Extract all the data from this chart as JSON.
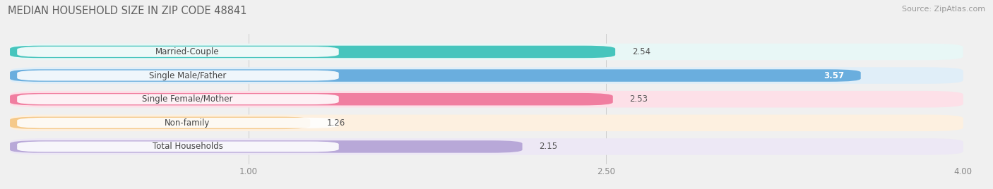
{
  "title": "MEDIAN HOUSEHOLD SIZE IN ZIP CODE 48841",
  "source": "Source: ZipAtlas.com",
  "categories": [
    "Married-Couple",
    "Single Male/Father",
    "Single Female/Mother",
    "Non-family",
    "Total Households"
  ],
  "values": [
    2.54,
    3.57,
    2.53,
    1.26,
    2.15
  ],
  "bar_colors": [
    "#46C5BD",
    "#6AAEDE",
    "#F07EA0",
    "#F5C98A",
    "#B8A8D8"
  ],
  "bar_bg_colors": [
    "#E8F7F6",
    "#E0EEF8",
    "#FDE0E8",
    "#FDF0E0",
    "#EDE8F5"
  ],
  "value_colors": [
    "#555555",
    "#ffffff",
    "#555555",
    "#555555",
    "#555555"
  ],
  "value_inside": [
    false,
    true,
    false,
    false,
    false
  ],
  "xlim": [
    0,
    4.0
  ],
  "xticks": [
    1.0,
    2.5,
    4.0
  ],
  "title_fontsize": 10.5,
  "label_fontsize": 8.5,
  "value_fontsize": 8.5,
  "source_fontsize": 8,
  "bg_color": "#f0f0f0"
}
